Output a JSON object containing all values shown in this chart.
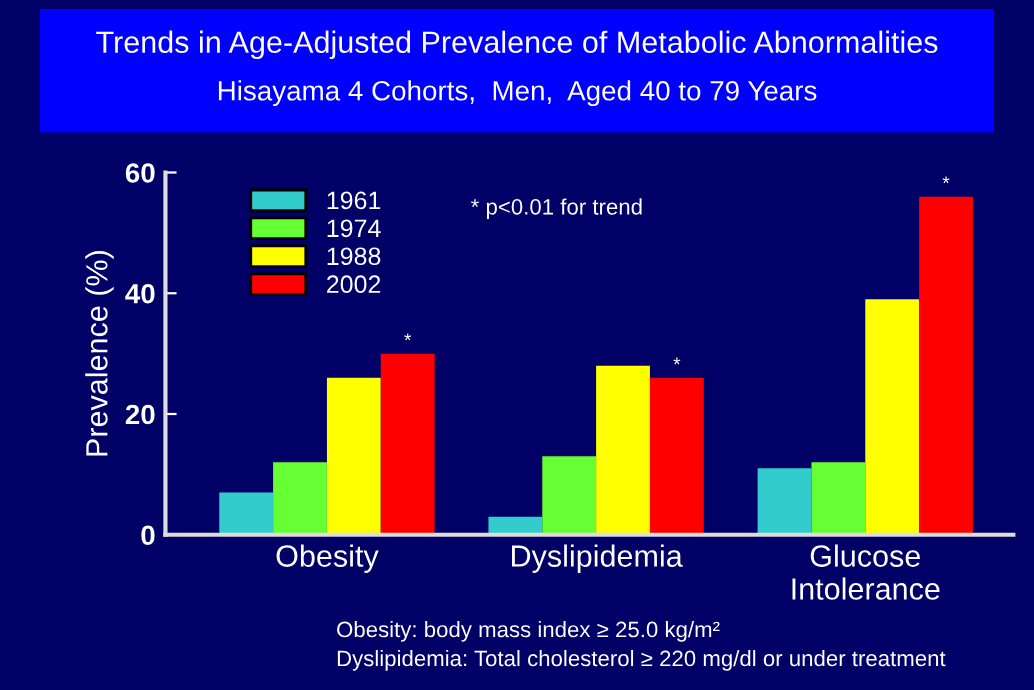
{
  "chart_data": {
    "type": "bar",
    "title": "Trends in Age-Adjusted Prevalence of Metabolic Abnormalities",
    "subtitle": "Hisayama 4 Cohorts,  Men,  Aged 40 to 79 Years",
    "ylabel": "Prevalence (%)",
    "categories": [
      "Obesity",
      "Dyslipidemia",
      "Glucose\nIntolerance"
    ],
    "series": [
      {
        "name": "1961",
        "color": "#33cccc",
        "values": [
          7,
          3,
          11
        ]
      },
      {
        "name": "1974",
        "color": "#66ff33",
        "values": [
          12,
          13,
          12
        ]
      },
      {
        "name": "1988",
        "color": "#ffff00",
        "values": [
          26,
          28,
          39
        ]
      },
      {
        "name": "2002",
        "color": "#ff0000",
        "values": [
          30,
          26,
          56
        ]
      }
    ],
    "ylim": [
      0,
      60
    ],
    "yticks": [
      0,
      20,
      40,
      60
    ],
    "grid": false,
    "legend": "top left",
    "annotations": [
      "* p<0.01 for trend",
      "*",
      "*",
      "*",
      "Obesity: body mass index ≥ 25.0 kg/m²",
      "Dyslipidemia: Total cholesterol ≥ 220 mg/dl or under treatment"
    ]
  }
}
